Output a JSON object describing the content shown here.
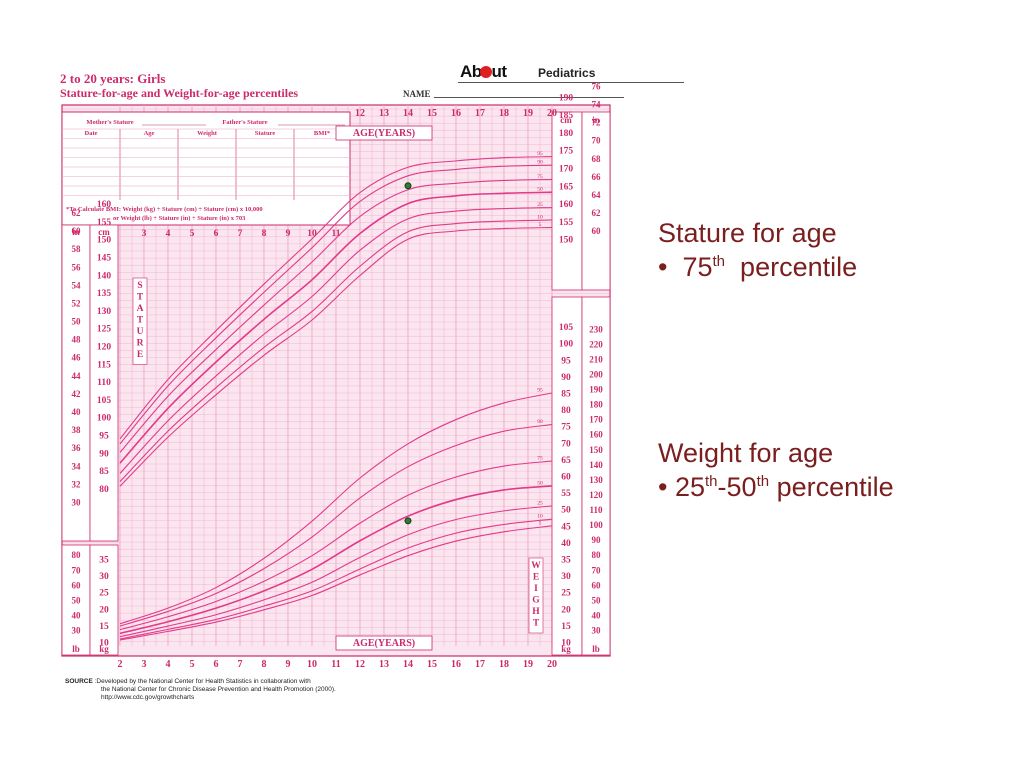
{
  "header": {
    "title": "2 to 20 years: Girls",
    "subtitle": "Stature-for-age and Weight-for-age percentiles",
    "name_label": "NAME"
  },
  "logo": {
    "brand": "About",
    "section": "Pediatrics"
  },
  "record_table": {
    "mother_stature": "Mother's Stature",
    "father_stature": "Father's Stature",
    "columns": [
      "Date",
      "Age",
      "Weight",
      "Stature",
      "BMI*"
    ],
    "bmi_note_1": "*To Calculate BMI: Weight (kg) ÷ Stature (cm) ÷ Stature (cm) x 10,000",
    "bmi_note_2": "or Weight (lb) ÷ Stature (in) ÷ Stature (in) x 703"
  },
  "chart_data": {
    "type": "line",
    "title": "2 to 20 years: Girls",
    "subtitle": "Stature-for-age and Weight-for-age percentiles",
    "xlabel": "AGE(YEARS)",
    "x_ticks_bottom": [
      2,
      3,
      4,
      5,
      6,
      7,
      8,
      9,
      10,
      11,
      12,
      13,
      14,
      15,
      16,
      17,
      18,
      19,
      20
    ],
    "x_ticks_top": [
      12,
      13,
      14,
      15,
      16,
      17,
      18,
      19,
      20
    ],
    "x_ticks_middle": [
      3,
      4,
      5,
      6,
      7,
      8,
      9,
      10,
      11
    ],
    "percentile_labels": [
      "95",
      "90",
      "75",
      "50",
      "25",
      "10",
      "5"
    ],
    "stature": {
      "label": "STATURE",
      "unit_left_outer": "in",
      "unit_left_inner": "cm",
      "unit_right_inner": "cm",
      "unit_right_outer": "in",
      "ylim_cm": [
        77,
        200
      ],
      "left_cm_ticks": [
        160,
        155,
        150,
        145,
        140,
        135,
        130,
        125,
        120,
        115,
        110,
        105,
        100,
        95,
        90,
        85,
        80
      ],
      "left_in_ticks": [
        62,
        60,
        58,
        56,
        54,
        52,
        50,
        48,
        46,
        44,
        42,
        40,
        38,
        36,
        34,
        32,
        30
      ],
      "right_cm_ticks": [
        190,
        185,
        180,
        175,
        170,
        165,
        160,
        155,
        150
      ],
      "right_in_ticks": [
        76,
        74,
        72,
        70,
        68,
        66,
        64,
        62,
        60
      ],
      "series": [
        {
          "name": "95",
          "x": [
            2,
            4,
            6,
            8,
            10,
            12,
            14,
            16,
            18,
            20
          ],
          "values": [
            93.9,
            110.6,
            124.3,
            137.4,
            150.1,
            163.1,
            170.2,
            172.0,
            172.9,
            173.2
          ]
        },
        {
          "name": "90",
          "x": [
            2,
            4,
            6,
            8,
            10,
            12,
            14,
            16,
            18,
            20
          ],
          "values": [
            92.5,
            108.8,
            122.3,
            135.1,
            147.6,
            160.6,
            167.8,
            169.6,
            170.5,
            170.8
          ]
        },
        {
          "name": "75",
          "x": [
            2,
            4,
            6,
            8,
            10,
            12,
            14,
            16,
            18,
            20
          ],
          "values": [
            90.1,
            105.9,
            119.0,
            131.5,
            143.6,
            156.4,
            163.9,
            165.7,
            166.5,
            166.8
          ]
        },
        {
          "name": "50",
          "x": [
            2,
            4,
            6,
            8,
            10,
            12,
            14,
            16,
            18,
            20
          ],
          "values": [
            87.1,
            102.5,
            115.5,
            127.5,
            138.6,
            151.6,
            160.0,
            162.2,
            162.9,
            163.2
          ]
        },
        {
          "name": "25",
          "x": [
            2,
            4,
            6,
            8,
            10,
            12,
            14,
            16,
            18,
            20
          ],
          "values": [
            84.2,
            99.0,
            111.6,
            123.3,
            133.9,
            146.9,
            155.7,
            157.9,
            158.6,
            158.9
          ]
        },
        {
          "name": "10",
          "x": [
            2,
            4,
            6,
            8,
            10,
            12,
            14,
            16,
            18,
            20
          ],
          "values": [
            81.9,
            96.1,
            108.3,
            119.6,
            129.7,
            142.4,
            152.1,
            154.4,
            155.1,
            155.4
          ]
        },
        {
          "name": "5",
          "x": [
            2,
            4,
            6,
            8,
            10,
            12,
            14,
            16,
            18,
            20
          ],
          "values": [
            80.6,
            94.4,
            106.3,
            117.4,
            127.3,
            139.8,
            150.0,
            152.3,
            153.0,
            153.3
          ]
        }
      ],
      "marker": {
        "age": 14,
        "value": 165
      }
    },
    "weight": {
      "label": "WEIGHT",
      "unit_left_outer": "lb",
      "unit_left_inner": "kg",
      "unit_right_inner": "kg",
      "unit_right_outer": "lb",
      "ylim_kg": [
        8,
        108
      ],
      "left_kg_ticks": [
        35,
        30,
        25,
        20,
        15,
        10
      ],
      "left_lb_ticks": [
        80,
        70,
        60,
        50,
        40,
        30
      ],
      "right_kg_ticks": [
        105,
        100,
        95,
        90,
        85,
        80,
        75,
        70,
        65,
        60,
        55,
        50,
        45,
        40,
        35,
        30,
        25,
        20,
        15,
        10
      ],
      "right_lb_ticks": [
        230,
        220,
        210,
        200,
        190,
        180,
        170,
        160,
        150,
        140,
        130,
        120,
        110,
        100,
        90,
        80,
        70,
        60,
        50,
        40,
        30
      ],
      "series": [
        {
          "name": "95",
          "x": [
            2,
            4,
            6,
            8,
            10,
            12,
            14,
            16,
            18,
            20
          ],
          "values": [
            15.5,
            20.2,
            26.4,
            35.2,
            46.4,
            59.4,
            69.7,
            77.0,
            82.0,
            85.0
          ]
        },
        {
          "name": "90",
          "x": [
            2,
            4,
            6,
            8,
            10,
            12,
            14,
            16,
            18,
            20
          ],
          "values": [
            14.8,
            19.2,
            24.6,
            32.1,
            41.6,
            53.4,
            62.8,
            69.2,
            73.5,
            75.5
          ]
        },
        {
          "name": "75",
          "x": [
            2,
            4,
            6,
            8,
            10,
            12,
            14,
            16,
            18,
            20
          ],
          "values": [
            13.7,
            17.6,
            22.2,
            28.3,
            36.0,
            45.8,
            54.2,
            59.7,
            63.0,
            64.5
          ]
        },
        {
          "name": "50",
          "x": [
            2,
            4,
            6,
            8,
            10,
            12,
            14,
            16,
            18,
            20
          ],
          "values": [
            12.6,
            16.1,
            20.2,
            25.4,
            31.9,
            40.5,
            47.9,
            52.9,
            55.8,
            57.0
          ]
        },
        {
          "name": "25",
          "x": [
            2,
            4,
            6,
            8,
            10,
            12,
            14,
            16,
            18,
            20
          ],
          "values": [
            11.6,
            14.8,
            18.2,
            22.7,
            28.0,
            35.5,
            42.3,
            46.9,
            49.5,
            51.0
          ]
        },
        {
          "name": "10",
          "x": [
            2,
            4,
            6,
            8,
            10,
            12,
            14,
            16,
            18,
            20
          ],
          "values": [
            10.9,
            13.8,
            16.8,
            20.8,
            25.4,
            32.0,
            38.3,
            42.8,
            45.4,
            47.0
          ]
        },
        {
          "name": "5",
          "x": [
            2,
            4,
            6,
            8,
            10,
            12,
            14,
            16,
            18,
            20
          ],
          "values": [
            10.6,
            13.2,
            16.0,
            19.7,
            24.0,
            30.2,
            36.0,
            40.4,
            43.2,
            45.0
          ]
        }
      ],
      "marker": {
        "age": 14,
        "value": 46.5
      }
    },
    "grid": true,
    "colors": {
      "line": "#e23a8a",
      "grid": "#eea6c8",
      "background": "#fbe5ef",
      "text": "#cc2a6a",
      "marker": "#2e7d32"
    }
  },
  "source": {
    "label": "SOURCE",
    "text_1": ":Developed by the National Center for Health Statistics in collaboration with",
    "text_2": "the National Center for Chronic Disease Prevention and Health Promotion (2000).",
    "text_3": "http://www.cdc.gov/growthcharts"
  },
  "annotations": {
    "stature_heading": "Stature for age",
    "stature_bullet": "•",
    "stature_value": "75",
    "stature_sup": "th",
    "stature_suffix": "percentile",
    "weight_heading": "Weight for age",
    "weight_bullet": "•",
    "weight_low": "25",
    "weight_low_sup": "th",
    "weight_dash": "-",
    "weight_high": "50",
    "weight_high_sup": "th",
    "weight_suffix": "percentile"
  }
}
